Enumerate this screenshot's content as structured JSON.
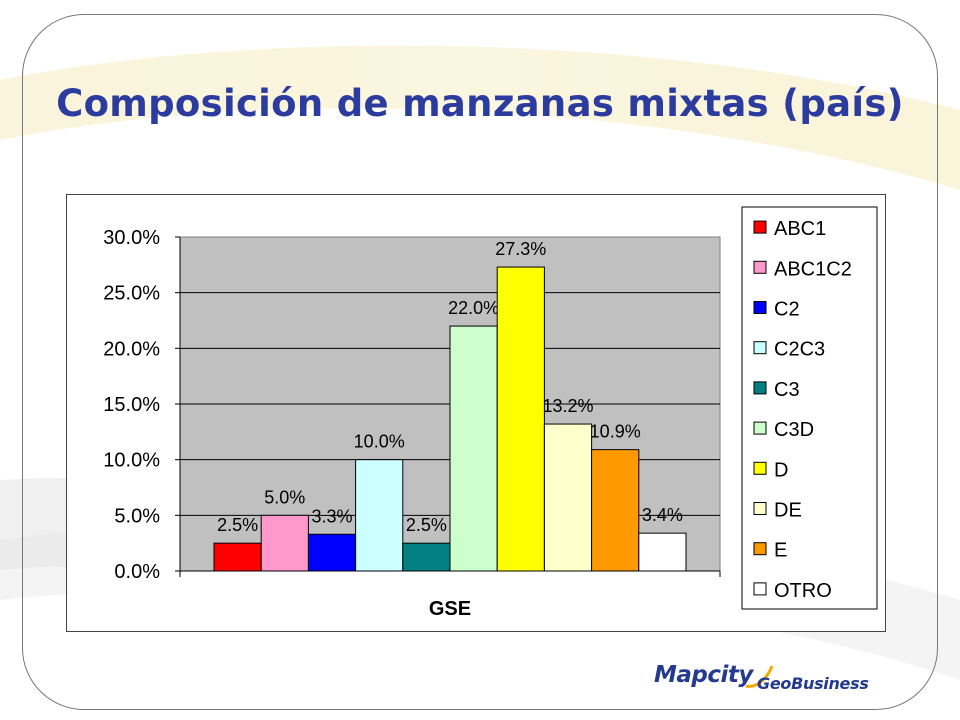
{
  "slide": {
    "title": "Composición de manzanas mixtas (país)"
  },
  "logo": {
    "brand": "Mapcity",
    "suffix": "GeoBusiness"
  },
  "colors": {
    "title": "#2c3c9e",
    "plot_area": "#c0c0c0",
    "logo": "#243a8f"
  },
  "chart_data": {
    "type": "bar",
    "xlabel": "GSE",
    "ylabel": "",
    "ylim": [
      0,
      0.3
    ],
    "yticks": [
      "0.0%",
      "5.0%",
      "10.0%",
      "15.0%",
      "20.0%",
      "25.0%",
      "30.0%"
    ],
    "gridlines": true,
    "legend_position": "right",
    "series": [
      {
        "name": "ABC1",
        "value": 0.025,
        "label": "2.5%",
        "color": "#ff0000"
      },
      {
        "name": "ABC1C2",
        "value": 0.05,
        "label": "5.0%",
        "color": "#ff99cc"
      },
      {
        "name": "C2",
        "value": 0.033,
        "label": "3.3%",
        "color": "#0000ff"
      },
      {
        "name": "C2C3",
        "value": 0.1,
        "label": "10.0%",
        "color": "#ccffff"
      },
      {
        "name": "C3",
        "value": 0.025,
        "label": "2.5%",
        "color": "#008080"
      },
      {
        "name": "C3D",
        "value": 0.22,
        "label": "22.0%",
        "color": "#ccffcc"
      },
      {
        "name": "D",
        "value": 0.273,
        "label": "27.3%",
        "color": "#ffff00"
      },
      {
        "name": "DE",
        "value": 0.132,
        "label": "13.2%",
        "color": "#ffffcc"
      },
      {
        "name": "E",
        "value": 0.109,
        "label": "10.9%",
        "color": "#ff9900"
      },
      {
        "name": "OTRO",
        "value": 0.034,
        "label": "3.4%",
        "color": "#ffffff"
      }
    ]
  }
}
